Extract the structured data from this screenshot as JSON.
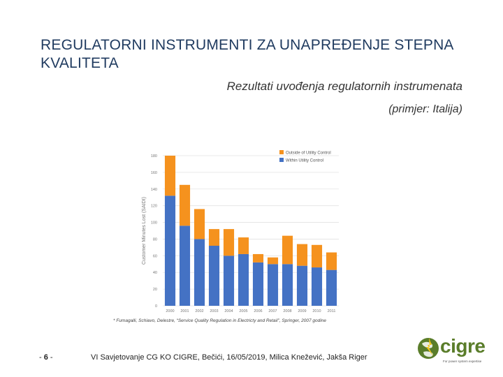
{
  "title": "REGULATORNI INSTRUMENTI ZA UNAPREĐENJE STEPNA KVALITETA",
  "subtitle": "Rezultati uvođenja regulatornih instrumenata",
  "subtitle2": "(primjer: Italija)",
  "source": "* Fumagalli, Schiavo, Delestre, “Service Quality Regulation in Electricty and Retail”, Springer, 2007 godine",
  "footer": {
    "page_prefix": "- ",
    "page_number": "6",
    "page_suffix": " -",
    "text": "VI Savjetovanje CG KO CIGRE, Bečići, 16/05/2019, Milica Knežević, Jakša Riger"
  },
  "logo": {
    "word": "cigre",
    "tagline": "For power system expertise"
  },
  "colors": {
    "title": "#1f3a5f",
    "outside": "#f5921e",
    "within": "#4472c4",
    "grid": "#e3e3e3",
    "axis_text": "#777777",
    "logo": "#5a7d2a"
  },
  "chart_data": {
    "type": "bar",
    "stacked": true,
    "categories": [
      "2000",
      "2001",
      "2002",
      "2003",
      "2004",
      "2005",
      "2006",
      "2007",
      "2008",
      "2009",
      "2010",
      "2011"
    ],
    "series": [
      {
        "name": "Within Utility Control",
        "values": [
          132,
          96,
          80,
          72,
          60,
          62,
          52,
          50,
          50,
          48,
          46,
          43
        ]
      },
      {
        "name": "Outside of Utility Control",
        "values": [
          48,
          49,
          36,
          20,
          32,
          20,
          10,
          8,
          34,
          26,
          27,
          21
        ]
      }
    ],
    "ylabel": "Customer Minutes Lost (SAIDI)",
    "ylim": [
      0,
      180
    ],
    "yticks": [
      0,
      20,
      40,
      60,
      80,
      100,
      120,
      140,
      160,
      180
    ],
    "legend_position": "top-right",
    "grid": true
  }
}
